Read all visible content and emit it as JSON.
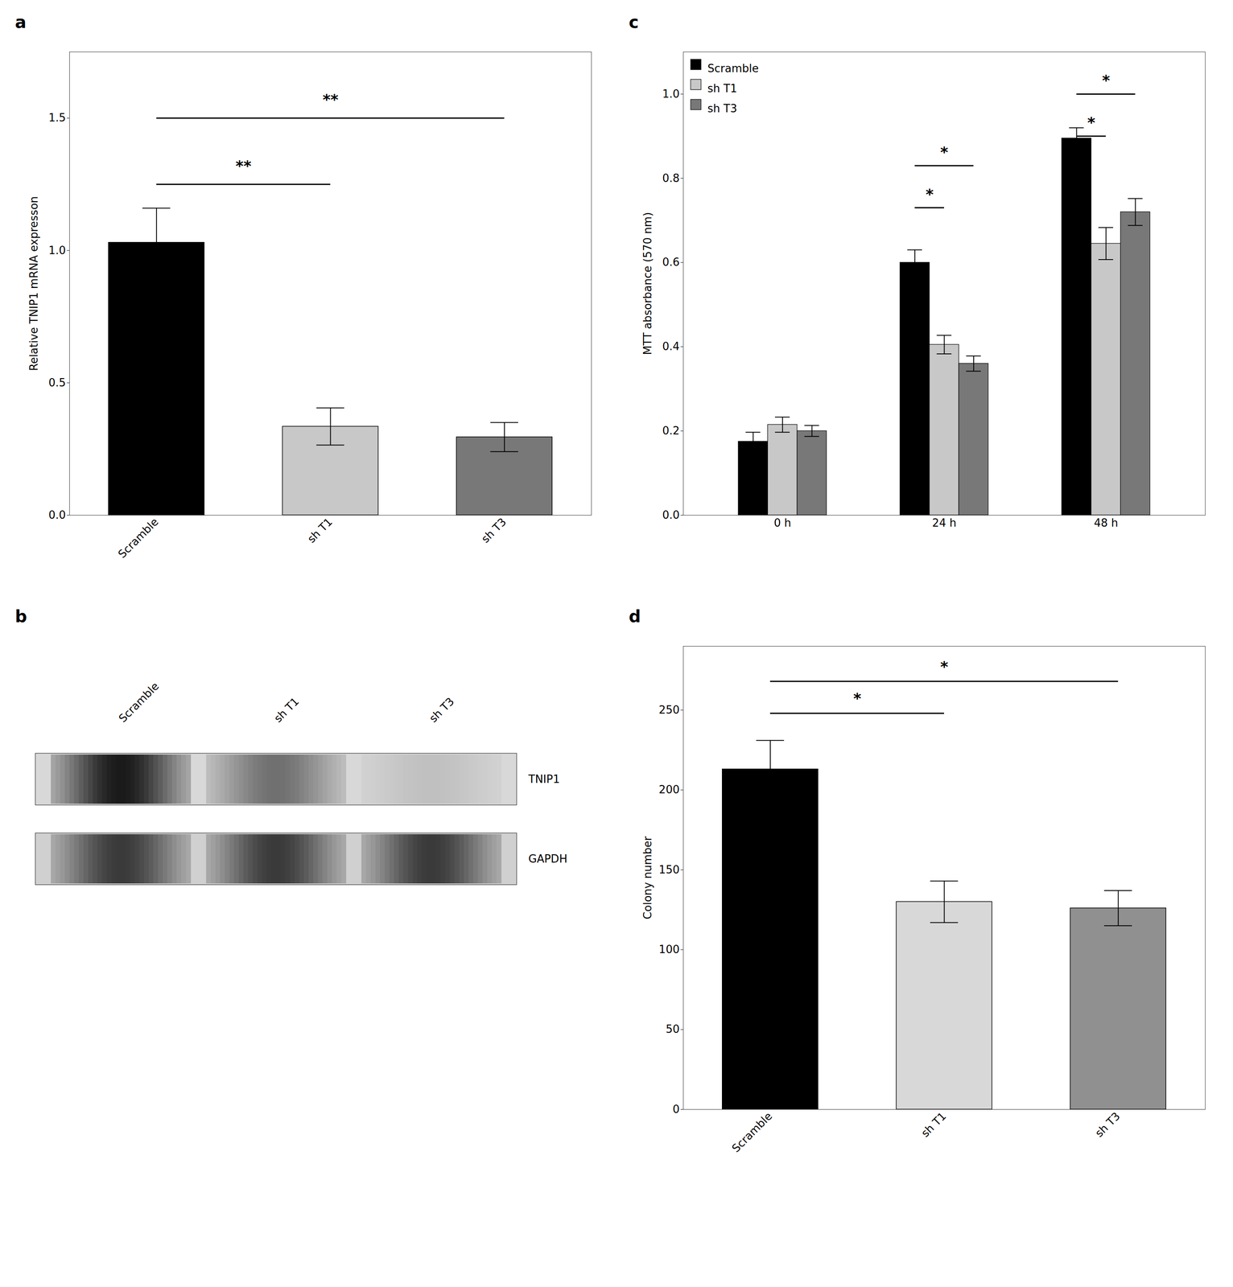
{
  "chart_data": [
    {
      "type": "bar",
      "title": "a",
      "categories": [
        "Scramble",
        "sh T1",
        "sh T3"
      ],
      "values": [
        1.03,
        0.335,
        0.295
      ],
      "errors": [
        0.13,
        0.07,
        0.055
      ],
      "colors": [
        "#000000",
        "#c8c8c8",
        "#787878"
      ],
      "ylabel": "Relative TNIP1 mRNA expresson",
      "ylim": [
        0,
        1.75
      ],
      "yticks": [
        {
          "value": 0,
          "label": "0.0"
        },
        0.5,
        {
          "value": 1.0,
          "label": "1.0"
        },
        1.5
      ],
      "annotations": [
        {
          "x1": "Scramble",
          "x2": "sh T1",
          "y": 1.25,
          "label": "**",
          "label_y": 1.3
        },
        {
          "x1": "Scramble",
          "x2": "sh T3",
          "y": 1.5,
          "label": "**",
          "label_y": 1.55
        }
      ]
    },
    {
      "type": "blot",
      "title": "b",
      "categories": [
        "Scramble",
        "sh T1",
        "sh T3"
      ],
      "series": [
        {
          "name": "TNIP1",
          "colors": [
            "#1a1a1a",
            "#707070",
            "#c0c0c0"
          ]
        },
        {
          "name": "GAPDH",
          "colors": [
            "#3a3a3a",
            "#3a3a3a",
            "#3a3a3a"
          ]
        }
      ]
    },
    {
      "type": "grouped_bar",
      "title": "c",
      "categories": [
        "0 h",
        "24 h",
        "48 h"
      ],
      "series": [
        {
          "name": "Scramble",
          "color": "#000000",
          "values": [
            0.175,
            0.6,
            0.895
          ],
          "errors": [
            0.022,
            0.03,
            0.025
          ]
        },
        {
          "name": "sh T1",
          "color": "#c8c8c8",
          "values": [
            0.215,
            0.405,
            0.645
          ],
          "errors": [
            0.018,
            0.022,
            0.038
          ]
        },
        {
          "name": "sh T3",
          "color": "#787878",
          "values": [
            0.2,
            0.36,
            0.72
          ],
          "errors": [
            0.013,
            0.018,
            0.032
          ]
        }
      ],
      "ylabel": "MTT absorbance (570 nm)",
      "ylim": [
        0,
        1.1
      ],
      "yticks": [
        {
          "value": 0,
          "label": "0.0"
        },
        0.2,
        0.4,
        0.6,
        0.8,
        {
          "value": 1.0,
          "label": "1.0"
        }
      ],
      "legend": "upper-left",
      "annotations": [
        {
          "time": "24 h",
          "x1": "Scramble",
          "x2": "sh T1",
          "y": 0.73,
          "label": "*",
          "label_y": 0.75
        },
        {
          "time": "24 h",
          "x1": "Scramble",
          "x2": "sh T3",
          "y": 0.83,
          "label": "*",
          "label_y": 0.85
        },
        {
          "time": "48 h",
          "x1": "Scramble",
          "x2": "sh T1",
          "y": 0.9,
          "label": "*",
          "label_y": 0.92
        },
        {
          "time": "48 h",
          "x1": "Scramble",
          "x2": "sh T3",
          "y": 1.0,
          "label": "*",
          "label_y": 1.02
        }
      ]
    },
    {
      "type": "bar",
      "title": "d",
      "categories": [
        "Scramble",
        "sh T1",
        "sh T3"
      ],
      "values": [
        213,
        130,
        126
      ],
      "errors": [
        18,
        13,
        11
      ],
      "colors": [
        "#000000",
        "#d8d8d8",
        "#909090"
      ],
      "ylabel": "Colony number",
      "ylim": [
        0,
        290
      ],
      "yticks": [
        0,
        50,
        100,
        150,
        200,
        250
      ],
      "annotations": [
        {
          "x1": "Scramble",
          "x2": "sh T1",
          "y": 248,
          "label": "*",
          "label_y": 254
        },
        {
          "x1": "Scramble",
          "x2": "sh T3",
          "y": 268,
          "label": "*",
          "label_y": 274
        }
      ]
    }
  ]
}
